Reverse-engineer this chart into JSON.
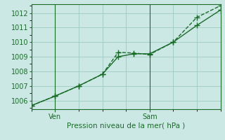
{
  "title": "",
  "xlabel": "Pression niveau de la mer( hPa )",
  "background_color": "#cce8e4",
  "grid_color": "#a0c8c2",
  "line_color": "#1a6b2a",
  "font_color": "#1a6b2a",
  "ylim": [
    1005.4,
    1012.6
  ],
  "yticks": [
    1006,
    1007,
    1008,
    1009,
    1010,
    1011,
    1012
  ],
  "xlim": [
    0,
    12
  ],
  "ven_x": 1.5,
  "sam_x": 7.5,
  "line1_x": [
    0,
    1.5,
    3.0,
    4.5,
    5.5,
    6.5,
    7.5,
    9.0,
    10.5,
    12
  ],
  "line1_y": [
    1005.65,
    1006.3,
    1007.0,
    1007.8,
    1009.0,
    1009.2,
    1009.2,
    1010.0,
    1011.15,
    1012.2
  ],
  "line2_x": [
    0,
    1.5,
    3.0,
    4.5,
    5.5,
    6.5,
    7.5,
    9.0,
    10.5,
    12
  ],
  "line2_y": [
    1005.65,
    1006.3,
    1007.0,
    1007.8,
    1009.3,
    1009.25,
    1009.15,
    1010.0,
    1011.7,
    1012.5
  ],
  "marker_size": 4,
  "line_width": 1.0,
  "font_size_label": 7.5,
  "font_size_tick": 7
}
